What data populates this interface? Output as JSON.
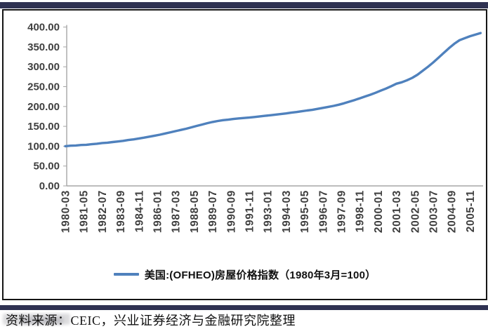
{
  "page": {
    "accent_bar_color": "#2f3252",
    "frame_border_color": "#151515",
    "background_color": "#ffffff"
  },
  "source_note": "资料来源：CEIC，兴业证券经济与金融研究院整理",
  "chart_data": {
    "type": "line",
    "title": "",
    "xlabel": "",
    "ylabel": "",
    "grid": false,
    "legend_position": "bottom",
    "axis_color": "#a6a6a6",
    "tick_label_color": "#3f3f3f",
    "ylim": [
      0,
      400
    ],
    "ytick_labels": [
      "0.00",
      "50.00",
      "100.00",
      "150.00",
      "200.00",
      "250.00",
      "300.00",
      "350.00",
      "400.00"
    ],
    "xtick_labels": [
      "1980-03",
      "1981-05",
      "1982-07",
      "1983-09",
      "1984-11",
      "1986-01",
      "1987-03",
      "1988-05",
      "1989-07",
      "1990-09",
      "1991-11",
      "1993-01",
      "1994-03",
      "1995-05",
      "1996-07",
      "1997-09",
      "1998-11",
      "2000-01",
      "2001-03",
      "2002-05",
      "2003-07",
      "2004-09",
      "2005-11"
    ],
    "xtick_interval_months": 14,
    "x_unit": "months since 1980-03",
    "legend": [
      {
        "name": "美国:(OFHEO)房屋价格指数（1980年3月=100）",
        "color": "#4f81bd"
      }
    ],
    "series": [
      {
        "name": "美国:(OFHEO)房屋价格指数（1980年3月=100）",
        "color": "#4f81bd",
        "points": [
          [
            0,
            100
          ],
          [
            4,
            101.2
          ],
          [
            8,
            101.8
          ],
          [
            12,
            103
          ],
          [
            16,
            103.6
          ],
          [
            20,
            105
          ],
          [
            24,
            106.2
          ],
          [
            28,
            108
          ],
          [
            32,
            108.8
          ],
          [
            36,
            110.5
          ],
          [
            40,
            111.8
          ],
          [
            44,
            113.5
          ],
          [
            48,
            115.5
          ],
          [
            52,
            117.2
          ],
          [
            56,
            119.5
          ],
          [
            60,
            121.5
          ],
          [
            64,
            124
          ],
          [
            68,
            126.5
          ],
          [
            72,
            129
          ],
          [
            76,
            132
          ],
          [
            80,
            135
          ],
          [
            84,
            138
          ],
          [
            88,
            141
          ],
          [
            92,
            144
          ],
          [
            96,
            147.5
          ],
          [
            100,
            151
          ],
          [
            104,
            154.5
          ],
          [
            108,
            158
          ],
          [
            112,
            161
          ],
          [
            116,
            163.5
          ],
          [
            120,
            165.5
          ],
          [
            124,
            166.8
          ],
          [
            128,
            168.5
          ],
          [
            132,
            170
          ],
          [
            136,
            171
          ],
          [
            140,
            172
          ],
          [
            144,
            173.5
          ],
          [
            148,
            175
          ],
          [
            152,
            176.5
          ],
          [
            156,
            178
          ],
          [
            160,
            179.5
          ],
          [
            164,
            181
          ],
          [
            168,
            182.5
          ],
          [
            172,
            184.5
          ],
          [
            176,
            186
          ],
          [
            180,
            188
          ],
          [
            184,
            190
          ],
          [
            188,
            191.5
          ],
          [
            192,
            194
          ],
          [
            196,
            196.5
          ],
          [
            200,
            199
          ],
          [
            204,
            201.5
          ],
          [
            208,
            204.5
          ],
          [
            212,
            208
          ],
          [
            216,
            212
          ],
          [
            220,
            216
          ],
          [
            224,
            220.5
          ],
          [
            228,
            225
          ],
          [
            232,
            229.5
          ],
          [
            236,
            234.5
          ],
          [
            240,
            240
          ],
          [
            244,
            245
          ],
          [
            248,
            251
          ],
          [
            252,
            257.5
          ],
          [
            256,
            261
          ],
          [
            260,
            266
          ],
          [
            264,
            272
          ],
          [
            268,
            280
          ],
          [
            272,
            290
          ],
          [
            276,
            300
          ],
          [
            280,
            311
          ],
          [
            284,
            323
          ],
          [
            288,
            335
          ],
          [
            292,
            347
          ],
          [
            296,
            358
          ],
          [
            300,
            367
          ],
          [
            304,
            372
          ],
          [
            308,
            377
          ],
          [
            312,
            381
          ],
          [
            316,
            385
          ]
        ]
      }
    ]
  }
}
